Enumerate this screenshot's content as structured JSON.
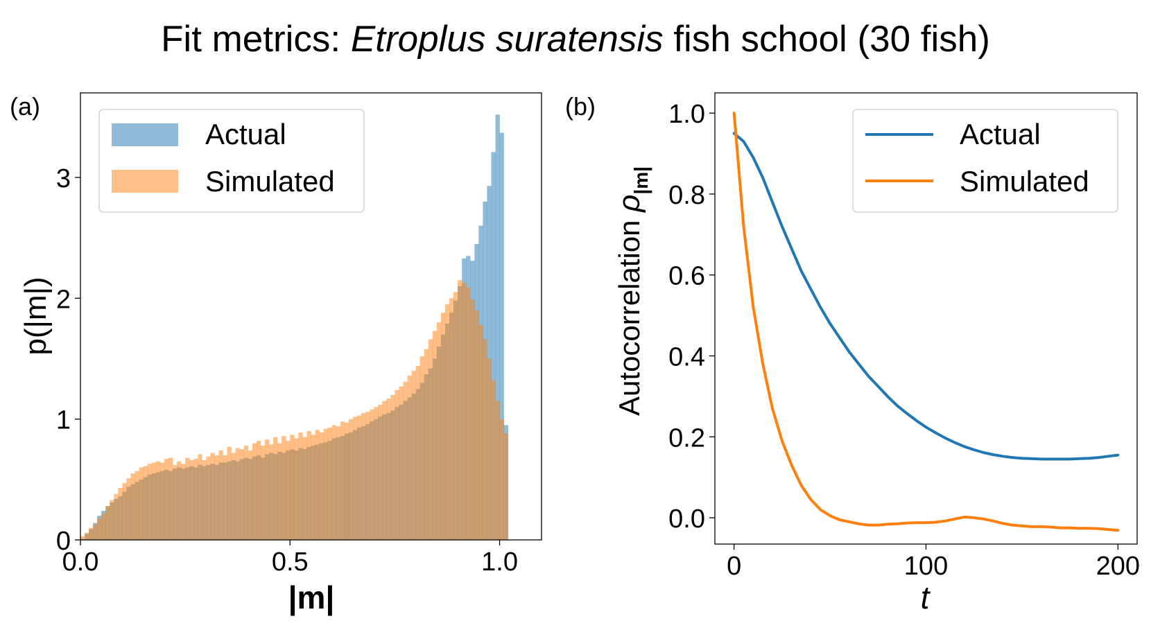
{
  "figure": {
    "title_prefix": "Fit metrics: ",
    "title_species": "Etroplus suratensis",
    "title_suffix": " fish school (30 fish)"
  },
  "chart_data": [
    {
      "panel": "(a)",
      "type": "bar",
      "subtype": "histogram",
      "xlabel": "|m|",
      "ylabel": "p(|m|)",
      "xlim": [
        0.0,
        1.1
      ],
      "ylim": [
        0,
        3.7
      ],
      "xticks": [
        "0.0",
        "0.5",
        "1.0"
      ],
      "yticks": [
        "0",
        "1",
        "2",
        "3"
      ],
      "grid": false,
      "legend_position": "upper-left",
      "bin_edges_start": 0.0,
      "bin_width": 0.01,
      "series": [
        {
          "name": "Actual",
          "color": "#1f77b4",
          "alpha": 0.5,
          "values": [
            0.01,
            0.05,
            0.09,
            0.14,
            0.2,
            0.24,
            0.28,
            0.31,
            0.34,
            0.36,
            0.4,
            0.44,
            0.46,
            0.48,
            0.5,
            0.52,
            0.54,
            0.55,
            0.56,
            0.57,
            0.58,
            0.57,
            0.59,
            0.6,
            0.59,
            0.6,
            0.61,
            0.6,
            0.62,
            0.61,
            0.62,
            0.63,
            0.62,
            0.64,
            0.64,
            0.65,
            0.66,
            0.65,
            0.67,
            0.68,
            0.67,
            0.69,
            0.7,
            0.68,
            0.71,
            0.72,
            0.71,
            0.73,
            0.72,
            0.74,
            0.75,
            0.74,
            0.76,
            0.75,
            0.77,
            0.78,
            0.79,
            0.8,
            0.81,
            0.82,
            0.84,
            0.85,
            0.86,
            0.88,
            0.89,
            0.91,
            0.93,
            0.94,
            0.96,
            0.98,
            1.0,
            1.02,
            1.04,
            1.05,
            1.07,
            1.1,
            1.12,
            1.15,
            1.18,
            1.21,
            1.25,
            1.3,
            1.37,
            1.42,
            1.5,
            1.6,
            1.7,
            1.79,
            1.88,
            1.98,
            2.1,
            2.33,
            2.35,
            2.31,
            2.45,
            2.6,
            2.8,
            2.93,
            3.21,
            3.52,
            3.37,
            0.95,
            0.0,
            0.0,
            0.0,
            0.0,
            0.0,
            0.0,
            0.0,
            0.0,
            0.0
          ]
        },
        {
          "name": "Simulated",
          "color": "#ff7f0e",
          "alpha": 0.5,
          "values": [
            0.03,
            0.06,
            0.1,
            0.13,
            0.18,
            0.22,
            0.28,
            0.33,
            0.38,
            0.43,
            0.47,
            0.51,
            0.55,
            0.57,
            0.6,
            0.61,
            0.63,
            0.64,
            0.65,
            0.64,
            0.67,
            0.68,
            0.62,
            0.65,
            0.63,
            0.68,
            0.66,
            0.67,
            0.71,
            0.66,
            0.69,
            0.72,
            0.7,
            0.74,
            0.7,
            0.77,
            0.72,
            0.76,
            0.75,
            0.78,
            0.74,
            0.8,
            0.82,
            0.78,
            0.83,
            0.79,
            0.85,
            0.8,
            0.86,
            0.82,
            0.87,
            0.84,
            0.89,
            0.85,
            0.9,
            0.87,
            0.91,
            0.89,
            0.92,
            0.93,
            0.95,
            0.94,
            0.98,
            0.97,
            1.0,
            1.02,
            1.03,
            1.05,
            1.06,
            1.08,
            1.1,
            1.12,
            1.15,
            1.17,
            1.2,
            1.24,
            1.27,
            1.31,
            1.36,
            1.4,
            1.44,
            1.52,
            1.58,
            1.66,
            1.73,
            1.8,
            1.88,
            1.95,
            2.0,
            2.05,
            2.15,
            2.13,
            2.09,
            1.99,
            1.9,
            1.78,
            1.66,
            1.5,
            1.32,
            1.15,
            1.0,
            0.88,
            0.0,
            0.0,
            0.0,
            0.0,
            0.0,
            0.0,
            0.0,
            0.0,
            0.0
          ]
        }
      ]
    },
    {
      "panel": "(b)",
      "type": "line",
      "xlabel": "t",
      "ylabel": "Autocorrelation ρ|m|",
      "ylabel_text": "Autocorrelation ",
      "ylabel_rho": "ρ",
      "ylabel_sub": "|m|",
      "xlim": [
        -10,
        210
      ],
      "ylim": [
        -0.065,
        1.05
      ],
      "xticks": [
        "0",
        "100",
        "200"
      ],
      "yticks": [
        "0.0",
        "0.2",
        "0.4",
        "0.6",
        "0.8",
        "1.0"
      ],
      "grid": false,
      "legend_position": "upper-right",
      "x": [
        0,
        5,
        10,
        15,
        20,
        25,
        30,
        35,
        40,
        45,
        50,
        55,
        60,
        65,
        70,
        75,
        80,
        85,
        90,
        95,
        100,
        105,
        110,
        115,
        120,
        125,
        130,
        135,
        140,
        145,
        150,
        155,
        160,
        165,
        170,
        175,
        180,
        185,
        190,
        195,
        200
      ],
      "series": [
        {
          "name": "Actual",
          "color": "#1f77b4",
          "values": [
            0.95,
            0.93,
            0.89,
            0.84,
            0.78,
            0.72,
            0.665,
            0.61,
            0.565,
            0.52,
            0.48,
            0.445,
            0.41,
            0.38,
            0.35,
            0.325,
            0.3,
            0.277,
            0.258,
            0.24,
            0.224,
            0.21,
            0.197,
            0.186,
            0.176,
            0.168,
            0.161,
            0.156,
            0.152,
            0.149,
            0.147,
            0.146,
            0.145,
            0.145,
            0.145,
            0.145,
            0.146,
            0.147,
            0.149,
            0.152,
            0.155
          ]
        },
        {
          "name": "Simulated",
          "color": "#ff7f0e",
          "values": [
            1.0,
            0.72,
            0.52,
            0.38,
            0.27,
            0.19,
            0.13,
            0.08,
            0.045,
            0.02,
            0.005,
            -0.005,
            -0.01,
            -0.015,
            -0.018,
            -0.018,
            -0.016,
            -0.015,
            -0.013,
            -0.012,
            -0.012,
            -0.011,
            -0.008,
            -0.003,
            0.002,
            0.0,
            -0.003,
            -0.008,
            -0.014,
            -0.018,
            -0.02,
            -0.022,
            -0.022,
            -0.023,
            -0.025,
            -0.025,
            -0.026,
            -0.026,
            -0.027,
            -0.029,
            -0.031
          ]
        }
      ]
    }
  ]
}
